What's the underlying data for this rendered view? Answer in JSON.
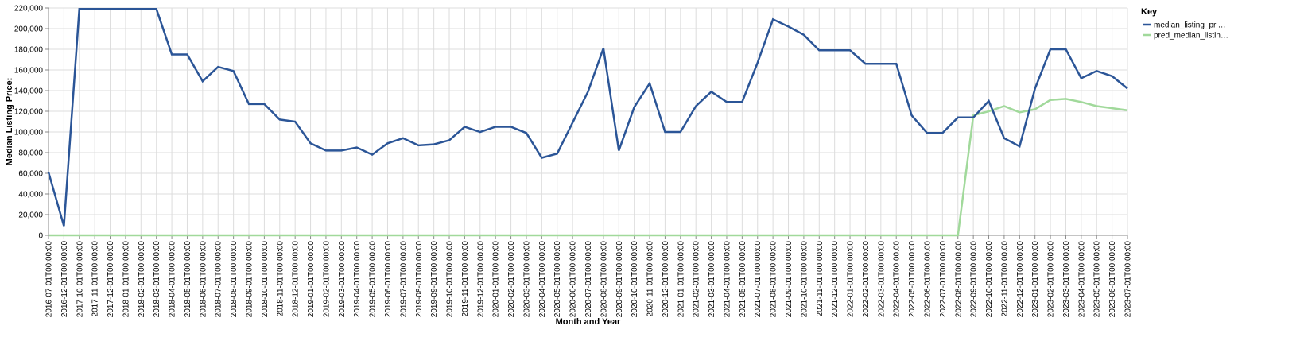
{
  "chart_data": {
    "type": "line",
    "xlabel": "Month and Year",
    "ylabel": "Median Listing Price:",
    "ylim": [
      0,
      220000
    ],
    "y_ticks": [
      0,
      20000,
      40000,
      60000,
      80000,
      100000,
      120000,
      140000,
      160000,
      180000,
      200000,
      220000
    ],
    "y_tick_labels": [
      "0",
      "20,000",
      "40,000",
      "60,000",
      "80,000",
      "100,000",
      "120,000",
      "140,000",
      "160,000",
      "180,000",
      "200,000",
      "220,000"
    ],
    "grid": true,
    "legend": {
      "title": "Key",
      "position": "top-right"
    },
    "x": [
      "2016-07-01T00:00:00",
      "2016-12-01T00:00:00",
      "2017-10-01T00:00:00",
      "2017-11-01T00:00:00",
      "2017-12-01T00:00:00",
      "2018-01-01T00:00:00",
      "2018-02-01T00:00:00",
      "2018-03-01T00:00:00",
      "2018-04-01T00:00:00",
      "2018-05-01T00:00:00",
      "2018-06-01T00:00:00",
      "2018-07-01T00:00:00",
      "2018-08-01T00:00:00",
      "2018-09-01T00:00:00",
      "2018-10-01T00:00:00",
      "2018-11-01T00:00:00",
      "2018-12-01T00:00:00",
      "2019-01-01T00:00:00",
      "2019-02-01T00:00:00",
      "2019-03-01T00:00:00",
      "2019-04-01T00:00:00",
      "2019-05-01T00:00:00",
      "2019-06-01T00:00:00",
      "2019-07-01T00:00:00",
      "2019-08-01T00:00:00",
      "2019-09-01T00:00:00",
      "2019-10-01T00:00:00",
      "2019-11-01T00:00:00",
      "2019-12-01T00:00:00",
      "2020-01-01T00:00:00",
      "2020-02-01T00:00:00",
      "2020-03-01T00:00:00",
      "2020-04-01T00:00:00",
      "2020-05-01T00:00:00",
      "2020-06-01T00:00:00",
      "2020-07-01T00:00:00",
      "2020-08-01T00:00:00",
      "2020-09-01T00:00:00",
      "2020-10-01T00:00:00",
      "2020-11-01T00:00:00",
      "2020-12-01T00:00:00",
      "2021-01-01T00:00:00",
      "2021-02-01T00:00:00",
      "2021-03-01T00:00:00",
      "2021-04-01T00:00:00",
      "2021-05-01T00:00:00",
      "2021-07-01T00:00:00",
      "2021-08-01T00:00:00",
      "2021-09-01T00:00:00",
      "2021-10-01T00:00:00",
      "2021-11-01T00:00:00",
      "2021-12-01T00:00:00",
      "2022-01-01T00:00:00",
      "2022-02-01T00:00:00",
      "2022-03-01T00:00:00",
      "2022-04-01T00:00:00",
      "2022-05-01T00:00:00",
      "2022-06-01T00:00:00",
      "2022-07-01T00:00:00",
      "2022-08-01T00:00:00",
      "2022-09-01T00:00:00",
      "2022-10-01T00:00:00",
      "2022-11-01T00:00:00",
      "2022-12-01T00:00:00",
      "2023-01-01T00:00:00",
      "2023-02-01T00:00:00",
      "2023-03-01T00:00:00",
      "2023-04-01T00:00:00",
      "2023-05-01T00:00:00",
      "2023-06-01T00:00:00",
      "2023-07-01T00:00:00"
    ],
    "series": [
      {
        "name": "median_listing_pri…",
        "color": "#2b5597",
        "values": [
          61000,
          9000,
          219000,
          219000,
          219000,
          219000,
          219000,
          219000,
          175000,
          175000,
          149000,
          163000,
          159000,
          127000,
          127000,
          112000,
          110000,
          89000,
          82000,
          82000,
          85000,
          78000,
          89000,
          94000,
          87000,
          88000,
          92000,
          105000,
          100000,
          105000,
          105000,
          99000,
          75000,
          79000,
          109000,
          139000,
          181000,
          82000,
          124000,
          147000,
          100000,
          100000,
          125000,
          139000,
          129000,
          129000,
          167000,
          209000,
          202000,
          194000,
          179000,
          179000,
          179000,
          166000,
          166000,
          166000,
          116000,
          99000,
          99000,
          114000,
          114000,
          130000,
          94000,
          86000,
          142000,
          180000,
          180000,
          152000,
          159000,
          154000,
          142000
        ]
      },
      {
        "name": "pred_median_listin…",
        "color": "#a1d99b",
        "values": [
          0,
          0,
          0,
          0,
          0,
          0,
          0,
          0,
          0,
          0,
          0,
          0,
          0,
          0,
          0,
          0,
          0,
          0,
          0,
          0,
          0,
          0,
          0,
          0,
          0,
          0,
          0,
          0,
          0,
          0,
          0,
          0,
          0,
          0,
          0,
          0,
          0,
          0,
          0,
          0,
          0,
          0,
          0,
          0,
          0,
          0,
          0,
          0,
          0,
          0,
          0,
          0,
          0,
          0,
          0,
          0,
          0,
          0,
          0,
          0,
          116000,
          120000,
          125000,
          119000,
          122000,
          131000,
          132000,
          129000,
          125000,
          123000,
          121000
        ]
      }
    ]
  }
}
